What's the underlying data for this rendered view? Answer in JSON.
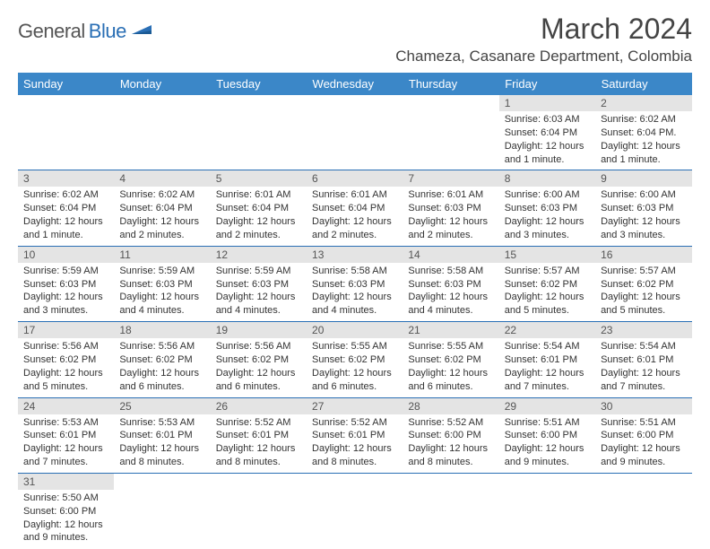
{
  "logo": {
    "part1": "General",
    "part2": "Blue"
  },
  "title": "March 2024",
  "location": "Chameza, Casanare Department, Colombia",
  "colors": {
    "header_bg": "#3b87c8",
    "header_fg": "#ffffff",
    "daynum_bg": "#e4e4e4",
    "row_border": "#2a6fb5",
    "logo_blue": "#2a6fb5"
  },
  "weekdays": [
    "Sunday",
    "Monday",
    "Tuesday",
    "Wednesday",
    "Thursday",
    "Friday",
    "Saturday"
  ],
  "weeks": [
    [
      null,
      null,
      null,
      null,
      null,
      {
        "n": "1",
        "sunrise": "Sunrise: 6:03 AM",
        "sunset": "Sunset: 6:04 PM",
        "daylight": "Daylight: 12 hours and 1 minute."
      },
      {
        "n": "2",
        "sunrise": "Sunrise: 6:02 AM",
        "sunset": "Sunset: 6:04 PM.",
        "daylight": "Daylight: 12 hours and 1 minute."
      }
    ],
    [
      {
        "n": "3",
        "sunrise": "Sunrise: 6:02 AM",
        "sunset": "Sunset: 6:04 PM",
        "daylight": "Daylight: 12 hours and 1 minute."
      },
      {
        "n": "4",
        "sunrise": "Sunrise: 6:02 AM",
        "sunset": "Sunset: 6:04 PM",
        "daylight": "Daylight: 12 hours and 2 minutes."
      },
      {
        "n": "5",
        "sunrise": "Sunrise: 6:01 AM",
        "sunset": "Sunset: 6:04 PM",
        "daylight": "Daylight: 12 hours and 2 minutes."
      },
      {
        "n": "6",
        "sunrise": "Sunrise: 6:01 AM",
        "sunset": "Sunset: 6:04 PM",
        "daylight": "Daylight: 12 hours and 2 minutes."
      },
      {
        "n": "7",
        "sunrise": "Sunrise: 6:01 AM",
        "sunset": "Sunset: 6:03 PM",
        "daylight": "Daylight: 12 hours and 2 minutes."
      },
      {
        "n": "8",
        "sunrise": "Sunrise: 6:00 AM",
        "sunset": "Sunset: 6:03 PM",
        "daylight": "Daylight: 12 hours and 3 minutes."
      },
      {
        "n": "9",
        "sunrise": "Sunrise: 6:00 AM",
        "sunset": "Sunset: 6:03 PM",
        "daylight": "Daylight: 12 hours and 3 minutes."
      }
    ],
    [
      {
        "n": "10",
        "sunrise": "Sunrise: 5:59 AM",
        "sunset": "Sunset: 6:03 PM",
        "daylight": "Daylight: 12 hours and 3 minutes."
      },
      {
        "n": "11",
        "sunrise": "Sunrise: 5:59 AM",
        "sunset": "Sunset: 6:03 PM",
        "daylight": "Daylight: 12 hours and 4 minutes."
      },
      {
        "n": "12",
        "sunrise": "Sunrise: 5:59 AM",
        "sunset": "Sunset: 6:03 PM",
        "daylight": "Daylight: 12 hours and 4 minutes."
      },
      {
        "n": "13",
        "sunrise": "Sunrise: 5:58 AM",
        "sunset": "Sunset: 6:03 PM",
        "daylight": "Daylight: 12 hours and 4 minutes."
      },
      {
        "n": "14",
        "sunrise": "Sunrise: 5:58 AM",
        "sunset": "Sunset: 6:03 PM",
        "daylight": "Daylight: 12 hours and 4 minutes."
      },
      {
        "n": "15",
        "sunrise": "Sunrise: 5:57 AM",
        "sunset": "Sunset: 6:02 PM",
        "daylight": "Daylight: 12 hours and 5 minutes."
      },
      {
        "n": "16",
        "sunrise": "Sunrise: 5:57 AM",
        "sunset": "Sunset: 6:02 PM",
        "daylight": "Daylight: 12 hours and 5 minutes."
      }
    ],
    [
      {
        "n": "17",
        "sunrise": "Sunrise: 5:56 AM",
        "sunset": "Sunset: 6:02 PM",
        "daylight": "Daylight: 12 hours and 5 minutes."
      },
      {
        "n": "18",
        "sunrise": "Sunrise: 5:56 AM",
        "sunset": "Sunset: 6:02 PM",
        "daylight": "Daylight: 12 hours and 6 minutes."
      },
      {
        "n": "19",
        "sunrise": "Sunrise: 5:56 AM",
        "sunset": "Sunset: 6:02 PM",
        "daylight": "Daylight: 12 hours and 6 minutes."
      },
      {
        "n": "20",
        "sunrise": "Sunrise: 5:55 AM",
        "sunset": "Sunset: 6:02 PM",
        "daylight": "Daylight: 12 hours and 6 minutes."
      },
      {
        "n": "21",
        "sunrise": "Sunrise: 5:55 AM",
        "sunset": "Sunset: 6:02 PM",
        "daylight": "Daylight: 12 hours and 6 minutes."
      },
      {
        "n": "22",
        "sunrise": "Sunrise: 5:54 AM",
        "sunset": "Sunset: 6:01 PM",
        "daylight": "Daylight: 12 hours and 7 minutes."
      },
      {
        "n": "23",
        "sunrise": "Sunrise: 5:54 AM",
        "sunset": "Sunset: 6:01 PM",
        "daylight": "Daylight: 12 hours and 7 minutes."
      }
    ],
    [
      {
        "n": "24",
        "sunrise": "Sunrise: 5:53 AM",
        "sunset": "Sunset: 6:01 PM",
        "daylight": "Daylight: 12 hours and 7 minutes."
      },
      {
        "n": "25",
        "sunrise": "Sunrise: 5:53 AM",
        "sunset": "Sunset: 6:01 PM",
        "daylight": "Daylight: 12 hours and 8 minutes."
      },
      {
        "n": "26",
        "sunrise": "Sunrise: 5:52 AM",
        "sunset": "Sunset: 6:01 PM",
        "daylight": "Daylight: 12 hours and 8 minutes."
      },
      {
        "n": "27",
        "sunrise": "Sunrise: 5:52 AM",
        "sunset": "Sunset: 6:01 PM",
        "daylight": "Daylight: 12 hours and 8 minutes."
      },
      {
        "n": "28",
        "sunrise": "Sunrise: 5:52 AM",
        "sunset": "Sunset: 6:00 PM",
        "daylight": "Daylight: 12 hours and 8 minutes."
      },
      {
        "n": "29",
        "sunrise": "Sunrise: 5:51 AM",
        "sunset": "Sunset: 6:00 PM",
        "daylight": "Daylight: 12 hours and 9 minutes."
      },
      {
        "n": "30",
        "sunrise": "Sunrise: 5:51 AM",
        "sunset": "Sunset: 6:00 PM",
        "daylight": "Daylight: 12 hours and 9 minutes."
      }
    ],
    [
      {
        "n": "31",
        "sunrise": "Sunrise: 5:50 AM",
        "sunset": "Sunset: 6:00 PM",
        "daylight": "Daylight: 12 hours and 9 minutes."
      },
      null,
      null,
      null,
      null,
      null,
      null
    ]
  ]
}
